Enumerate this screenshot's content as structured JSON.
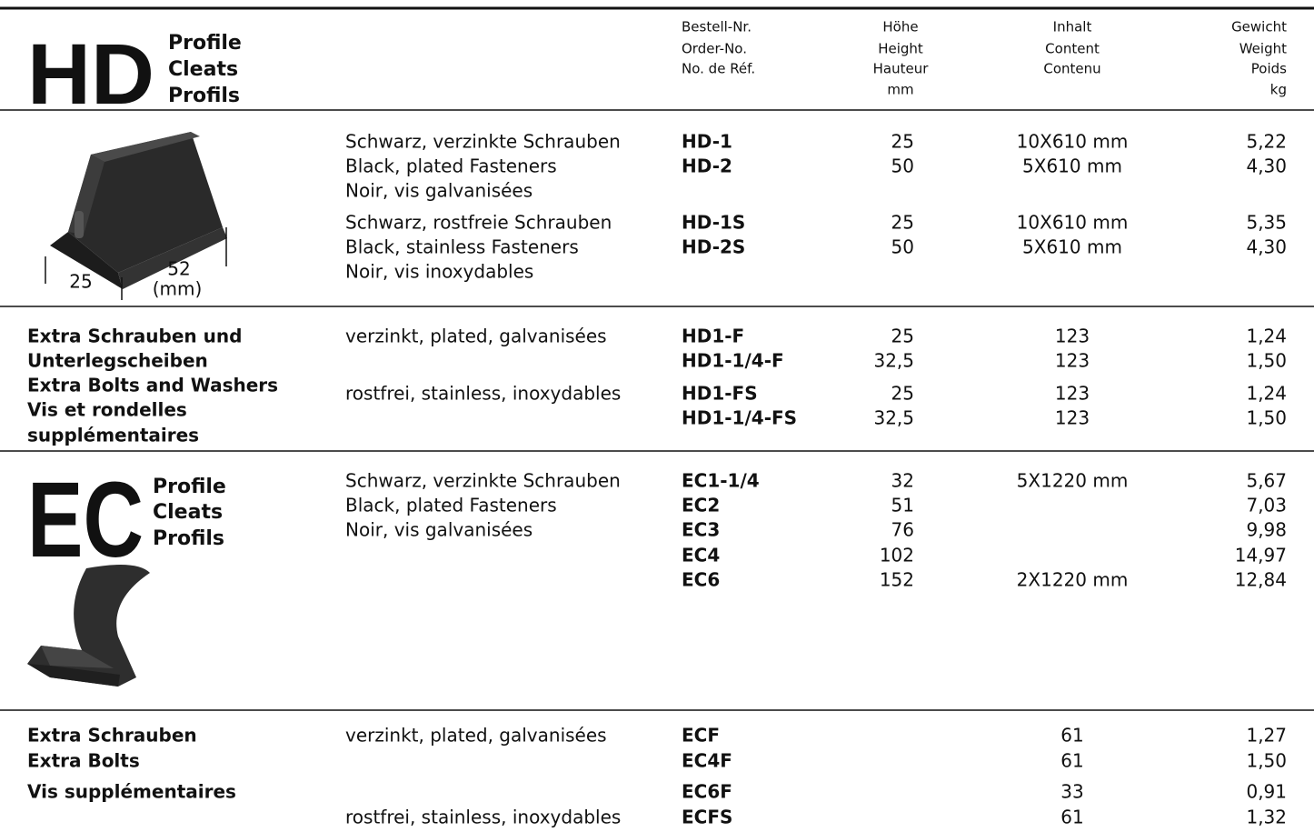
{
  "header": {
    "order": [
      "Bestell-Nr.",
      "Order-No.",
      "No. de Réf."
    ],
    "height": [
      "Höhe",
      "Height",
      "Hauteur",
      "mm"
    ],
    "content": [
      "Inhalt",
      "Content",
      "Contenu"
    ],
    "weight": [
      "Gewicht",
      "Weight",
      "Poids",
      "kg"
    ]
  },
  "sections": [
    {
      "logo": "HD",
      "subtitle": [
        "Profile",
        "Cleats",
        "Profils"
      ],
      "dims": [
        "25",
        "52",
        "(mm)"
      ],
      "groups": [
        {
          "desc": [
            "Schwarz, verzinkte Schrauben",
            "Black, plated Fasteners",
            "Noir, vis galvanisées"
          ],
          "rows": [
            {
              "order": "HD-1",
              "height": "25",
              "content": "10X610 mm",
              "weight": "5,22"
            },
            {
              "order": "HD-2",
              "height": "50",
              "content": "5X610 mm",
              "weight": "4,30"
            }
          ]
        },
        {
          "desc": [
            "Schwarz, rostfreie Schrauben",
            "Black, stainless Fasteners",
            "Noir, vis inoxydables"
          ],
          "rows": [
            {
              "order": "HD-1S",
              "height": "25",
              "content": "10X610 mm",
              "weight": "5,35"
            },
            {
              "order": "HD-2S",
              "height": "50",
              "content": "5X610 mm",
              "weight": "4,30"
            }
          ]
        }
      ]
    },
    {
      "label": [
        "Extra Schrauben und",
        "Unterlegscheiben",
        "Extra Bolts and Washers",
        "Vis et rondelles",
        "supplémentaires"
      ],
      "groups": [
        {
          "desc": [
            "verzinkt, plated, galvanisées"
          ],
          "rows": [
            {
              "order": "HD1-F",
              "height": "25",
              "content": "123",
              "weight": "1,24"
            },
            {
              "order": "HD1-1/4-F",
              "height": "32,5",
              "content": "123",
              "weight": "1,50"
            }
          ]
        },
        {
          "desc": [
            "rostfrei, stainless, inoxydables"
          ],
          "rows": [
            {
              "order": "HD1-FS",
              "height": "25",
              "content": "123",
              "weight": "1,24"
            },
            {
              "order": "HD1-1/4-FS",
              "height": "32,5",
              "content": "123",
              "weight": "1,50"
            }
          ]
        }
      ]
    },
    {
      "logo": "EC",
      "subtitle": [
        "Profile",
        "Cleats",
        "Profils"
      ],
      "groups": [
        {
          "desc": [
            "Schwarz, verzinkte Schrauben",
            "Black, plated Fasteners",
            "Noir, vis galvanisées"
          ],
          "rows": [
            {
              "order": "EC1-1/4",
              "height": "32",
              "content": "5X1220 mm",
              "weight": "5,67"
            },
            {
              "order": "EC2",
              "height": "51",
              "weight": "7,03"
            },
            {
              "order": "EC3",
              "height": "76",
              "weight": "9,98"
            },
            {
              "order": "EC4",
              "height": "102",
              "weight": "14,97"
            },
            {
              "order": "EC6",
              "height": "152",
              "content": "2X1220 mm",
              "weight": "12,84"
            }
          ]
        }
      ]
    },
    {
      "label": [
        "Extra Schrauben",
        "Extra Bolts",
        "Vis supplémentaires"
      ],
      "groups": [
        {
          "desc": [
            "verzinkt, plated, galvanisées"
          ],
          "rows": [
            {
              "order": "ECF",
              "content": "61",
              "weight": "1,27"
            },
            {
              "order": "EC4F",
              "content": "61",
              "weight": "1,50"
            },
            {
              "order": "EC6F",
              "content": "33",
              "weight": "0,91"
            }
          ]
        },
        {
          "desc": [
            "rostfrei, stainless, inoxydables"
          ],
          "rows": [
            {
              "order": "ECFS",
              "content": "61",
              "weight": "1,32"
            }
          ]
        }
      ]
    }
  ]
}
